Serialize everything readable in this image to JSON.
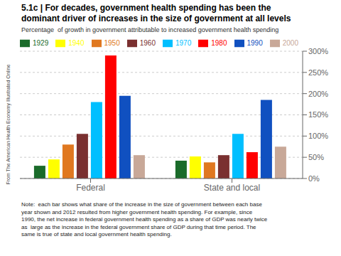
{
  "chart_data": {
    "type": "bar",
    "title": "5.1c | For decades, government health spending has been the\ndominant driver of increases in the size of government at all levels",
    "subtitle": "Percentage  of growth in government attributable to increased government health spending",
    "categories": [
      "Federal",
      "State and local"
    ],
    "series": [
      {
        "name": "1929",
        "color": "#1a6b2a",
        "values": [
          30,
          42
        ]
      },
      {
        "name": "1940",
        "color": "#ffff00",
        "values": [
          45,
          52
        ]
      },
      {
        "name": "1950",
        "color": "#e07820",
        "values": [
          80,
          38
        ]
      },
      {
        "name": "1960",
        "color": "#7a3030",
        "values": [
          105,
          55
        ]
      },
      {
        "name": "1970",
        "color": "#00bfff",
        "values": [
          180,
          105
        ]
      },
      {
        "name": "1980",
        "color": "#ff0000",
        "values": [
          290,
          62
        ]
      },
      {
        "name": "1990",
        "color": "#1050c0",
        "values": [
          195,
          185
        ]
      },
      {
        "name": "2000",
        "color": "#c8a898",
        "values": [
          55,
          75
        ]
      }
    ],
    "ylim": [
      0,
      300
    ],
    "yticks": [
      {
        "value": 0,
        "label": "0%"
      },
      {
        "value": 50,
        "label": "50%"
      },
      {
        "value": 100,
        "label": "100%"
      },
      {
        "value": 150,
        "label": "150%"
      },
      {
        "value": 200,
        "label": "200%"
      },
      {
        "value": 250,
        "label": "250%"
      },
      {
        "value": 300,
        "label": "300%"
      }
    ],
    "grid": true,
    "legend": "upper left",
    "annotations": [
      "Note:  each bar shows what share of the increase in the size of government between each base\nyear shown and 2012 resulted from higher government health spending. For example, since\n1990, the net increase in federal government health spending as a share of GDP was nearly twice\nas  large as the increase in the federal government share of GDP during that time period. The\nsame is true of state and local government health spending.",
      "From The American Health Economy Illustrated Online"
    ]
  }
}
